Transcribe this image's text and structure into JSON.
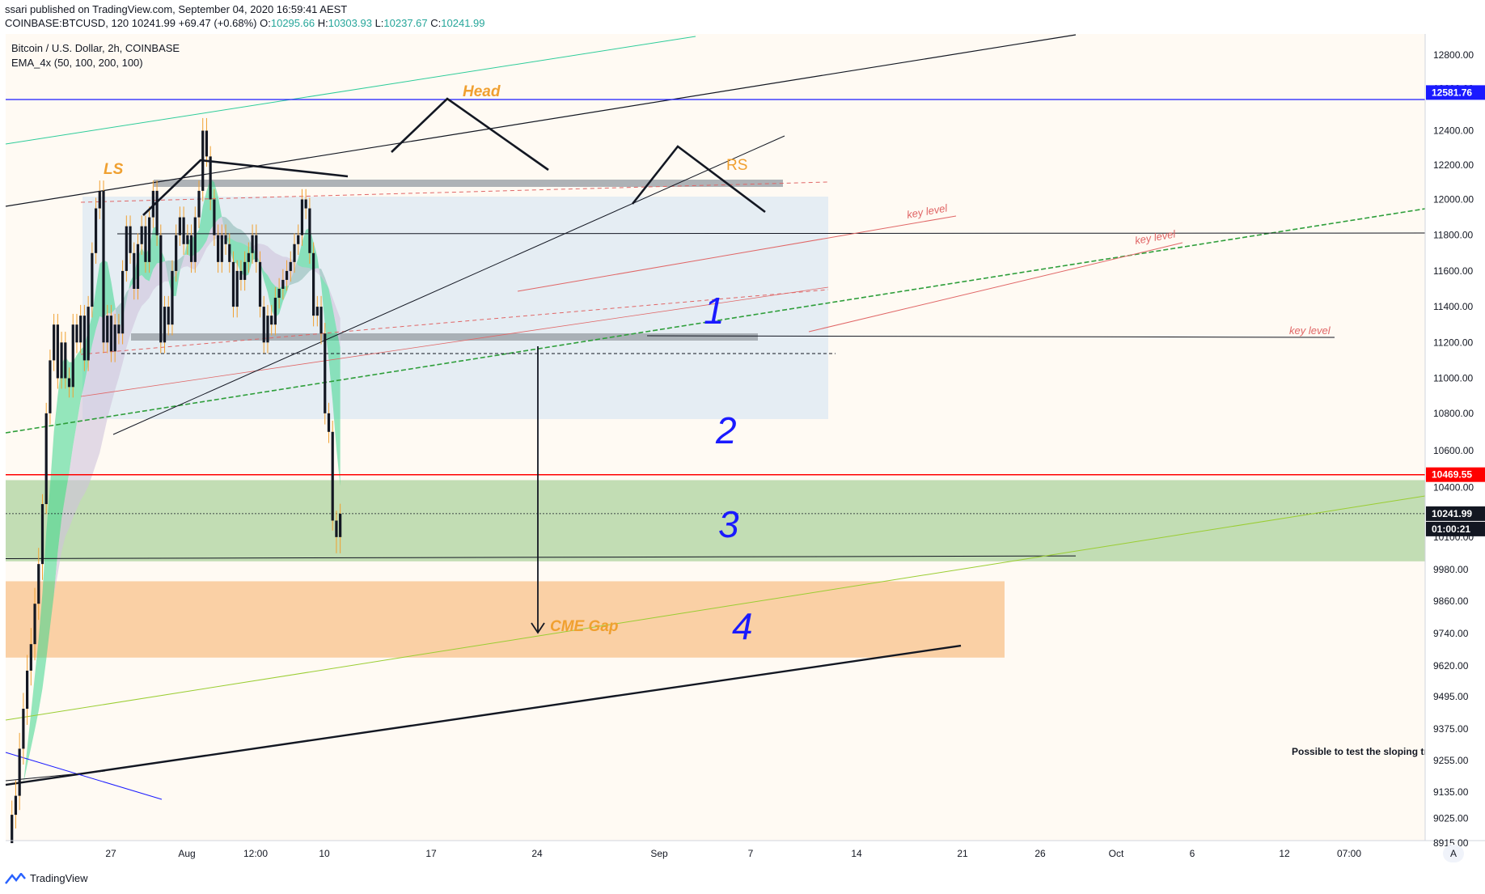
{
  "header": {
    "published_line": "ssari published on TradingView.com, September 04, 2020 16:59:41 AEST",
    "symbol": "COINBASE:BTCUSD, 120",
    "last": "10241.99",
    "change": "+69.47 (+0.68%)",
    "o_label": "O:",
    "o_value": "10295.66",
    "h_label": "H:",
    "h_value": "10303.93",
    "l_label": "L:",
    "l_value": "10237.67",
    "c_label": "C:",
    "c_value": "10241.99"
  },
  "legend": {
    "title": "Bitcoin / U.S. Dollar, 2h, COINBASE",
    "indicator": "EMA_4x (50, 100, 200, 100)"
  },
  "footer": {
    "brand": "TradingView",
    "auto_button": "A"
  },
  "colors": {
    "bg": "#fffaf3",
    "up": "#26a69a",
    "down": "#131722",
    "candle": "#131722",
    "wick_orange": "#f0a030",
    "ema_fill": "#3dd68c",
    "ema_fill2": "#cfc3dc",
    "channel_box": "#cfe2f3",
    "green_zone": "#b7d7a8",
    "orange_zone": "#f9cb9c",
    "label_orange": "#f0a030",
    "key_level": "#e06666",
    "blue": "#1a1aff",
    "red_line": "#ff0000",
    "black": "#131722"
  },
  "chart_data": {
    "type": "line",
    "title": "Bitcoin / U.S. Dollar, 2h, COINBASE",
    "price_axis": {
      "ticks": [
        "12800.00",
        "12600.00",
        "12400.00",
        "12200.00",
        "12000.00",
        "11800.00",
        "11600.00",
        "11400.00",
        "11200.00",
        "11000.00",
        "10800.00",
        "10600.00",
        "10400.00",
        "10100.00",
        "9980.00",
        "9860.00",
        "9740.00",
        "9620.00",
        "9495.00",
        "9375.00",
        "9255.00",
        "9135.00",
        "9025.00",
        "8915.00"
      ],
      "markers": [
        {
          "value": "12581.76",
          "color": "#1a1aff"
        },
        {
          "value": "10469.55",
          "color": "#ff0000"
        },
        {
          "value": "10241.99",
          "color": "#131722"
        },
        {
          "value": "01:00:21",
          "color": "#131722"
        }
      ]
    },
    "time_axis": {
      "ticks": [
        "27",
        "Aug",
        "12:00",
        "10",
        "17",
        "24",
        "Sep",
        "7",
        "14",
        "21",
        "26",
        "Oct",
        "6",
        "12",
        "07:00"
      ]
    },
    "price_path_points": [
      [
        8915,
        0
      ],
      [
        9040,
        4
      ],
      [
        9120,
        8
      ],
      [
        9300,
        12
      ],
      [
        9450,
        16
      ],
      [
        9600,
        20
      ],
      [
        9700,
        24
      ],
      [
        9850,
        28
      ],
      [
        10000,
        30
      ],
      [
        10300,
        32
      ],
      [
        10800,
        34
      ],
      [
        11100,
        36
      ],
      [
        11300,
        38
      ],
      [
        11000,
        40
      ],
      [
        11200,
        42
      ],
      [
        11000,
        44
      ],
      [
        10950,
        46
      ],
      [
        11300,
        48
      ],
      [
        11200,
        50
      ],
      [
        11350,
        52
      ],
      [
        11100,
        54
      ],
      [
        11400,
        56
      ],
      [
        11700,
        58
      ],
      [
        11950,
        60
      ],
      [
        12050,
        62
      ],
      [
        11200,
        64
      ],
      [
        11350,
        66
      ],
      [
        11150,
        68
      ],
      [
        11300,
        70
      ],
      [
        11250,
        72
      ],
      [
        11600,
        74
      ],
      [
        11850,
        76
      ],
      [
        11700,
        78
      ],
      [
        11500,
        80
      ],
      [
        11750,
        82
      ],
      [
        11850,
        84
      ],
      [
        11650,
        86
      ],
      [
        11900,
        88
      ],
      [
        12050,
        90
      ],
      [
        11800,
        92
      ],
      [
        11200,
        94
      ],
      [
        11400,
        96
      ],
      [
        11300,
        98
      ],
      [
        11600,
        100
      ],
      [
        11800,
        102
      ],
      [
        11900,
        104
      ],
      [
        11750,
        106
      ],
      [
        11800,
        108
      ],
      [
        11650,
        110
      ],
      [
        11900,
        112
      ],
      [
        12050,
        114
      ],
      [
        12400,
        116
      ],
      [
        12250,
        118
      ],
      [
        12000,
        120
      ],
      [
        11800,
        122
      ],
      [
        11650,
        124
      ],
      [
        11800,
        126
      ],
      [
        11750,
        128
      ],
      [
        11650,
        130
      ],
      [
        11400,
        132
      ],
      [
        11600,
        134
      ],
      [
        11550,
        136
      ],
      [
        11650,
        138
      ],
      [
        11700,
        140
      ],
      [
        11800,
        142
      ],
      [
        11650,
        144
      ],
      [
        11400,
        146
      ],
      [
        11200,
        148
      ],
      [
        11350,
        150
      ],
      [
        11300,
        152
      ],
      [
        11450,
        154
      ],
      [
        11500,
        156
      ],
      [
        11550,
        158
      ],
      [
        11600,
        160
      ],
      [
        11650,
        162
      ],
      [
        11750,
        164
      ],
      [
        11800,
        166
      ],
      [
        12000,
        168
      ],
      [
        11950,
        170
      ],
      [
        11700,
        172
      ],
      [
        11350,
        174
      ],
      [
        11400,
        176
      ],
      [
        11250,
        178
      ],
      [
        10800,
        180
      ],
      [
        10700,
        182
      ],
      [
        10200,
        184
      ],
      [
        10100,
        186
      ],
      [
        10242,
        187
      ]
    ],
    "annotations": [
      {
        "text": "Head",
        "color": "#f0a030"
      },
      {
        "text": "LS",
        "color": "#f0a030"
      },
      {
        "text": "RS",
        "color": "#f0a030"
      },
      {
        "text": "key level",
        "color": "#e06666"
      },
      {
        "text": "key level",
        "color": "#e06666"
      },
      {
        "text": "key level",
        "color": "#e06666"
      },
      {
        "text": "CME Gap",
        "color": "#f0a030"
      },
      {
        "text": "Possible to test the sloping tr",
        "color": "#131722"
      }
    ],
    "handwritten_numbers": [
      "1",
      "2",
      "3",
      "4"
    ]
  }
}
